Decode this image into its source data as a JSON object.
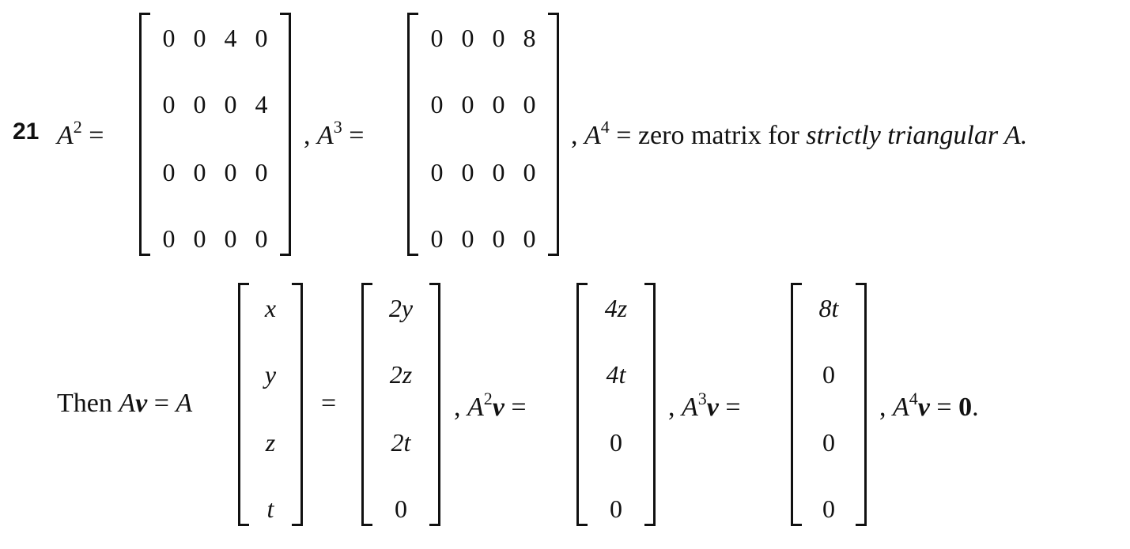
{
  "problem_number": "21",
  "line1": {
    "a2_lhs": "A",
    "a2_exp": "2",
    "eq": "=",
    "comma1": ",",
    "a3_lhs": "A",
    "a3_exp": "3",
    "comma2": ",",
    "a4_lhs": "A",
    "a4_exp": "4",
    "tail_text": "zero matrix for ",
    "tail_italic": "strictly triangular",
    "tail_end": " A."
  },
  "matrix_a2": [
    [
      "0",
      "0",
      "4",
      "0"
    ],
    [
      "0",
      "0",
      "0",
      "4"
    ],
    [
      "0",
      "0",
      "0",
      "0"
    ],
    [
      "0",
      "0",
      "0",
      "0"
    ]
  ],
  "matrix_a3": [
    [
      "0",
      "0",
      "0",
      "8"
    ],
    [
      "0",
      "0",
      "0",
      "0"
    ],
    [
      "0",
      "0",
      "0",
      "0"
    ],
    [
      "0",
      "0",
      "0",
      "0"
    ]
  ],
  "line2": {
    "then": "Then ",
    "av_A": "A",
    "av_v": "v",
    "eq": "=",
    "A": "A",
    "a2v_A": "A",
    "a2v_exp": "2",
    "a2v_v": "v",
    "a3v_A": "A",
    "a3v_exp": "3",
    "a3v_v": "v",
    "a4v_A": "A",
    "a4v_exp": "4",
    "a4v_v": "v",
    "zero": "0",
    "comma": ",",
    "period": "."
  },
  "vec_v": [
    "x",
    "y",
    "z",
    "t"
  ],
  "vec_av": [
    "2y",
    "2z",
    "2t",
    "0"
  ],
  "vec_a2v": [
    "4z",
    "4t",
    "0",
    "0"
  ],
  "vec_a3v": [
    "8t",
    "0",
    "0",
    "0"
  ]
}
